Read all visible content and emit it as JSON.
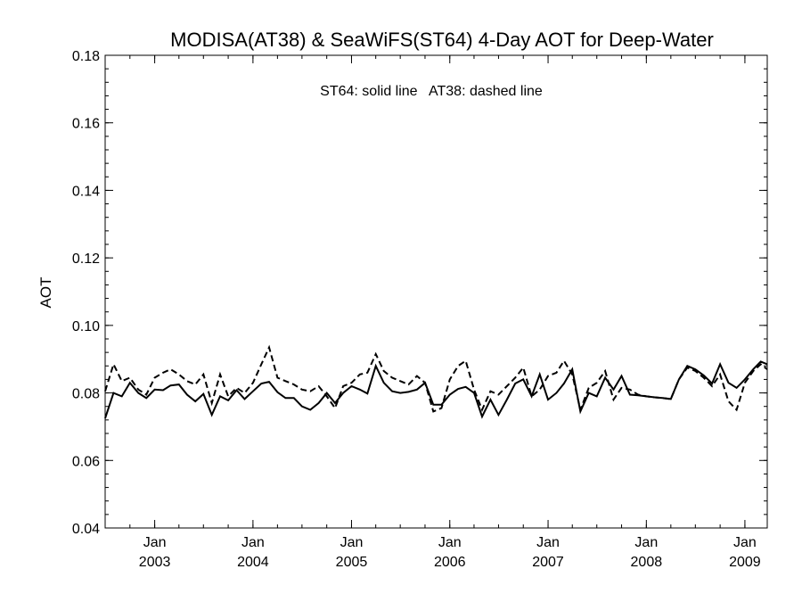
{
  "chart_data": {
    "type": "line",
    "title": "MODISA(AT38) & SeaWiFS(ST64) 4-Day AOT for Deep-Water",
    "annotation": "ST64: solid line   AT38: dashed line",
    "ylabel": "AOT",
    "xlabel": "",
    "ylim": [
      0.04,
      0.18
    ],
    "yticks": [
      0.04,
      0.06,
      0.08,
      0.1,
      0.12,
      0.14,
      0.16,
      0.18
    ],
    "ytick_labels": [
      "0.04",
      "0.06",
      "0.08",
      "0.10",
      "0.12",
      "0.14",
      "0.16",
      "0.18"
    ],
    "xlim": [
      "2002-07-01",
      "2009-03-25"
    ],
    "xticks": [
      {
        "date": "2003-01-01",
        "month": "Jan",
        "year": "2003"
      },
      {
        "date": "2004-01-01",
        "month": "Jan",
        "year": "2004"
      },
      {
        "date": "2005-01-01",
        "month": "Jan",
        "year": "2005"
      },
      {
        "date": "2006-01-01",
        "month": "Jan",
        "year": "2006"
      },
      {
        "date": "2007-01-01",
        "month": "Jan",
        "year": "2007"
      },
      {
        "date": "2008-01-01",
        "month": "Jan",
        "year": "2008"
      },
      {
        "date": "2009-01-01",
        "month": "Jan",
        "year": "2009"
      }
    ],
    "grid": false,
    "series": [
      {
        "name": "ST64",
        "style": "solid",
        "color": "#000000",
        "points": [
          [
            "2002-07-01",
            0.0725
          ],
          [
            "2002-08-01",
            0.08
          ],
          [
            "2002-09-01",
            0.079
          ],
          [
            "2002-10-01",
            0.083
          ],
          [
            "2002-11-01",
            0.08
          ],
          [
            "2002-12-01",
            0.0785
          ],
          [
            "2003-01-01",
            0.081
          ],
          [
            "2003-02-01",
            0.0808
          ],
          [
            "2003-03-01",
            0.0822
          ],
          [
            "2003-04-01",
            0.0825
          ],
          [
            "2003-05-01",
            0.0795
          ],
          [
            "2003-06-01",
            0.0775
          ],
          [
            "2003-07-01",
            0.0797
          ],
          [
            "2003-08-01",
            0.0735
          ],
          [
            "2003-09-01",
            0.079
          ],
          [
            "2003-10-01",
            0.0778
          ],
          [
            "2003-11-01",
            0.0808
          ],
          [
            "2003-12-01",
            0.0782
          ],
          [
            "2004-01-01",
            0.0805
          ],
          [
            "2004-02-01",
            0.0828
          ],
          [
            "2004-03-01",
            0.0833
          ],
          [
            "2004-04-01",
            0.0802
          ],
          [
            "2004-05-01",
            0.0785
          ],
          [
            "2004-06-01",
            0.0785
          ],
          [
            "2004-07-01",
            0.076
          ],
          [
            "2004-08-01",
            0.075
          ],
          [
            "2004-09-01",
            0.077
          ],
          [
            "2004-10-01",
            0.08
          ],
          [
            "2004-11-01",
            0.077
          ],
          [
            "2004-12-01",
            0.08
          ],
          [
            "2005-01-01",
            0.082
          ],
          [
            "2005-02-01",
            0.081
          ],
          [
            "2005-03-01",
            0.0798
          ],
          [
            "2005-04-01",
            0.088
          ],
          [
            "2005-05-01",
            0.083
          ],
          [
            "2005-06-01",
            0.0805
          ],
          [
            "2005-07-01",
            0.08
          ],
          [
            "2005-08-01",
            0.0803
          ],
          [
            "2005-09-01",
            0.081
          ],
          [
            "2005-10-01",
            0.083
          ],
          [
            "2005-11-01",
            0.0765
          ],
          [
            "2005-12-01",
            0.0765
          ],
          [
            "2006-01-01",
            0.0795
          ],
          [
            "2006-02-01",
            0.0812
          ],
          [
            "2006-03-01",
            0.0818
          ],
          [
            "2006-04-01",
            0.08
          ],
          [
            "2006-05-01",
            0.073
          ],
          [
            "2006-06-01",
            0.078
          ],
          [
            "2006-07-01",
            0.0735
          ],
          [
            "2006-08-01",
            0.078
          ],
          [
            "2006-09-01",
            0.0828
          ],
          [
            "2006-10-01",
            0.084
          ],
          [
            "2006-11-01",
            0.079
          ],
          [
            "2006-12-01",
            0.0855
          ],
          [
            "2007-01-01",
            0.078
          ],
          [
            "2007-02-01",
            0.08
          ],
          [
            "2007-03-01",
            0.0828
          ],
          [
            "2007-04-01",
            0.087
          ],
          [
            "2007-05-01",
            0.0745
          ],
          [
            "2007-06-01",
            0.08
          ],
          [
            "2007-07-01",
            0.079
          ],
          [
            "2007-08-01",
            0.0845
          ],
          [
            "2007-09-01",
            0.081
          ],
          [
            "2007-10-01",
            0.085
          ],
          [
            "2007-11-01",
            0.0795
          ],
          [
            "2007-12-01",
            0.0793
          ],
          [
            "2008-01-01",
            0.079
          ],
          [
            "2008-02-01",
            0.0787
          ],
          [
            "2008-03-01",
            0.0785
          ],
          [
            "2008-04-01",
            0.0782
          ],
          [
            "2008-05-01",
            0.084
          ],
          [
            "2008-06-01",
            0.088
          ],
          [
            "2008-07-01",
            0.087
          ],
          [
            "2008-08-01",
            0.0852
          ],
          [
            "2008-09-01",
            0.0828
          ],
          [
            "2008-10-01",
            0.0885
          ],
          [
            "2008-11-01",
            0.083
          ],
          [
            "2008-12-01",
            0.0815
          ],
          [
            "2009-01-01",
            0.084
          ],
          [
            "2009-02-01",
            0.087
          ],
          [
            "2009-03-01",
            0.0893
          ],
          [
            "2009-03-25",
            0.0885
          ]
        ]
      },
      {
        "name": "AT38",
        "style": "dashed",
        "color": "#000000",
        "points": [
          [
            "2002-07-01",
            0.0805
          ],
          [
            "2002-08-01",
            0.0885
          ],
          [
            "2002-09-01",
            0.0835
          ],
          [
            "2002-10-01",
            0.0845
          ],
          [
            "2002-11-01",
            0.081
          ],
          [
            "2002-12-01",
            0.0795
          ],
          [
            "2003-01-01",
            0.0845
          ],
          [
            "2003-02-01",
            0.086
          ],
          [
            "2003-03-01",
            0.087
          ],
          [
            "2003-04-01",
            0.0855
          ],
          [
            "2003-05-01",
            0.0835
          ],
          [
            "2003-06-01",
            0.0825
          ],
          [
            "2003-07-01",
            0.0855
          ],
          [
            "2003-08-01",
            0.077
          ],
          [
            "2003-09-01",
            0.0855
          ],
          [
            "2003-10-01",
            0.079
          ],
          [
            "2003-11-01",
            0.0815
          ],
          [
            "2003-12-01",
            0.08
          ],
          [
            "2004-01-01",
            0.083
          ],
          [
            "2004-02-01",
            0.0885
          ],
          [
            "2004-03-01",
            0.0935
          ],
          [
            "2004-04-01",
            0.0845
          ],
          [
            "2004-05-01",
            0.0835
          ],
          [
            "2004-06-01",
            0.0825
          ],
          [
            "2004-07-01",
            0.081
          ],
          [
            "2004-08-01",
            0.0805
          ],
          [
            "2004-09-01",
            0.082
          ],
          [
            "2004-10-01",
            0.079
          ],
          [
            "2004-11-01",
            0.0755
          ],
          [
            "2004-12-01",
            0.082
          ],
          [
            "2005-01-01",
            0.083
          ],
          [
            "2005-02-01",
            0.0855
          ],
          [
            "2005-03-01",
            0.086
          ],
          [
            "2005-04-01",
            0.0915
          ],
          [
            "2005-05-01",
            0.0865
          ],
          [
            "2005-06-01",
            0.0845
          ],
          [
            "2005-07-01",
            0.0835
          ],
          [
            "2005-08-01",
            0.0825
          ],
          [
            "2005-09-01",
            0.085
          ],
          [
            "2005-10-01",
            0.083
          ],
          [
            "2005-11-01",
            0.0745
          ],
          [
            "2005-12-01",
            0.0755
          ],
          [
            "2006-01-01",
            0.084
          ],
          [
            "2006-02-01",
            0.088
          ],
          [
            "2006-03-01",
            0.0895
          ],
          [
            "2006-04-01",
            0.081
          ],
          [
            "2006-05-01",
            0.075
          ],
          [
            "2006-06-01",
            0.0805
          ],
          [
            "2006-07-01",
            0.0795
          ],
          [
            "2006-08-01",
            0.082
          ],
          [
            "2006-09-01",
            0.0845
          ],
          [
            "2006-10-01",
            0.0875
          ],
          [
            "2006-11-01",
            0.079
          ],
          [
            "2006-12-01",
            0.081
          ],
          [
            "2007-01-01",
            0.085
          ],
          [
            "2007-02-01",
            0.086
          ],
          [
            "2007-03-01",
            0.0895
          ],
          [
            "2007-04-01",
            0.0855
          ],
          [
            "2007-05-01",
            0.075
          ],
          [
            "2007-06-01",
            0.0815
          ],
          [
            "2007-07-01",
            0.083
          ],
          [
            "2007-08-01",
            0.0865
          ],
          [
            "2007-09-01",
            0.078
          ],
          [
            "2007-10-01",
            0.0815
          ],
          [
            "2007-11-01",
            0.081
          ],
          [
            "2007-12-01",
            0.0795
          ],
          [
            "2008-01-01",
            0.079
          ],
          [
            "2008-02-01",
            0.0787
          ],
          [
            "2008-03-01",
            0.0785
          ],
          [
            "2008-04-01",
            0.0782
          ],
          [
            "2008-05-01",
            0.084
          ],
          [
            "2008-06-01",
            0.0875
          ],
          [
            "2008-07-01",
            0.0865
          ],
          [
            "2008-08-01",
            0.0845
          ],
          [
            "2008-09-01",
            0.082
          ],
          [
            "2008-10-01",
            0.0855
          ],
          [
            "2008-11-01",
            0.0775
          ],
          [
            "2008-12-01",
            0.075
          ],
          [
            "2009-01-01",
            0.083
          ],
          [
            "2009-02-01",
            0.0865
          ],
          [
            "2009-03-01",
            0.0885
          ],
          [
            "2009-03-25",
            0.087
          ]
        ]
      }
    ]
  }
}
